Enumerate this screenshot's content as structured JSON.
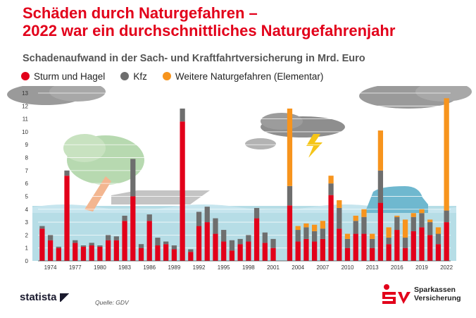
{
  "title_line1": "Schäden durch Naturgefahren –",
  "title_line2": "2022 war ein durchschnittliches Naturgefahrenjahr",
  "subtitle": "Schadenaufwand in der Sach- und Kraftfahrtversicherung in Mrd. Euro",
  "source": "Quelle: GDV",
  "brand": "statista",
  "sponsor_line1": "Sparkassen",
  "sponsor_line2": "Versicherung",
  "colors": {
    "sturm": "#e2001a",
    "kfz": "#6e6e6e",
    "weitere": "#f7941d",
    "title": "#e2001a"
  },
  "chart_data": {
    "type": "bar",
    "stacked": true,
    "ylim": [
      0,
      13
    ],
    "yticks": [
      "0",
      "1",
      "2",
      "3",
      "4",
      "5",
      "6",
      "7",
      "8",
      "9",
      "10",
      "11",
      "12",
      "13"
    ],
    "x_tick_labels": [
      "1974",
      "1977",
      "1980",
      "1983",
      "1986",
      "1989",
      "1992",
      "1995",
      "1998",
      "2001",
      "2004",
      "2007",
      "2010",
      "2013",
      "2016",
      "2019",
      "2022"
    ],
    "categories": [
      "1973",
      "1974",
      "1975",
      "1976",
      "1977",
      "1978",
      "1979",
      "1980",
      "1981",
      "1982",
      "1983",
      "1984",
      "1985",
      "1986",
      "1987",
      "1988",
      "1989",
      "1990",
      "1991",
      "1992",
      "1993",
      "1994",
      "1995",
      "1996",
      "1997",
      "1998",
      "1999",
      "2000",
      "2001",
      "2002",
      "2003",
      "2004",
      "2005",
      "2006",
      "2007",
      "2008",
      "2009",
      "2010",
      "2011",
      "2012",
      "2013",
      "2014",
      "2015",
      "2016",
      "2017",
      "2018",
      "2019",
      "2020",
      "2021",
      "2022"
    ],
    "legend": [
      {
        "key": "sturm",
        "label": "Sturm und Hagel"
      },
      {
        "key": "kfz",
        "label": "Kfz"
      },
      {
        "key": "weitere",
        "label": "Weitere Naturgefahren (Elementar)"
      }
    ],
    "series": [
      {
        "name": "Sturm und Hagel",
        "key": "sturm",
        "values": [
          2.5,
          1.6,
          1.0,
          6.6,
          1.4,
          1.1,
          1.2,
          1.1,
          1.6,
          1.6,
          3.1,
          5.0,
          1.0,
          3.1,
          1.2,
          1.3,
          0.9,
          10.8,
          0.7,
          2.7,
          3.0,
          2.1,
          1.5,
          0.8,
          1.3,
          1.5,
          3.3,
          1.4,
          1.0,
          0.0,
          4.3,
          1.5,
          1.7,
          1.5,
          1.7,
          5.1,
          2.5,
          1.0,
          2.1,
          2.1,
          1.0,
          4.5,
          1.3,
          2.4,
          1.0,
          2.3,
          2.6,
          2.0,
          1.3,
          3.0
        ]
      },
      {
        "name": "Kfz",
        "key": "kfz",
        "values": [
          0.2,
          0.4,
          0.1,
          0.4,
          0.2,
          0.1,
          0.2,
          0.1,
          0.4,
          0.3,
          0.4,
          2.9,
          0.3,
          0.5,
          0.6,
          0.2,
          0.3,
          1.0,
          0.2,
          1.1,
          1.2,
          1.2,
          0.9,
          0.8,
          0.4,
          0.5,
          0.8,
          0.8,
          0.7,
          0.0,
          1.5,
          0.9,
          0.9,
          0.8,
          0.8,
          0.9,
          1.6,
          0.7,
          1.0,
          1.3,
          0.7,
          2.5,
          0.5,
          1.0,
          0.8,
          1.1,
          1.1,
          1.0,
          0.8,
          0.9
        ]
      },
      {
        "name": "Weitere Naturgefahren (Elementar)",
        "key": "weitere",
        "values": [
          0,
          0,
          0,
          0,
          0,
          0,
          0,
          0,
          0,
          0,
          0,
          0,
          0,
          0,
          0,
          0,
          0,
          0,
          0,
          0,
          0,
          0,
          0,
          0,
          0,
          0,
          0,
          0,
          0,
          0,
          6.0,
          0.3,
          0.3,
          0.5,
          0.6,
          0.6,
          0.6,
          0.4,
          0.4,
          0.6,
          0.4,
          3.1,
          0.8,
          0.1,
          1.4,
          0.3,
          0.3,
          0.2,
          0.5,
          8.7
        ]
      }
    ]
  }
}
